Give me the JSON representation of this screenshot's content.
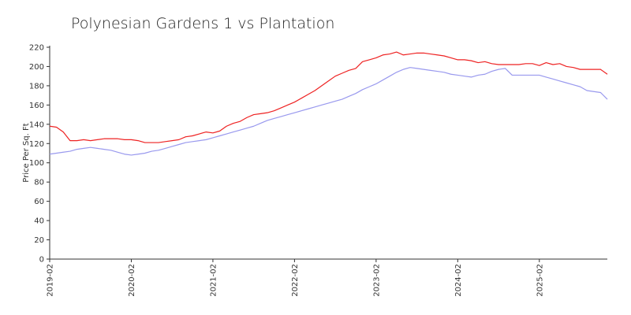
{
  "chart_data": {
    "type": "line",
    "title": "Polynesian Gardens 1 vs Plantation",
    "xlabel": "",
    "ylabel": "Price Per Sq. Ft",
    "ylim": [
      0,
      220
    ],
    "yticks": [
      0,
      20,
      40,
      60,
      80,
      100,
      120,
      140,
      160,
      180,
      200,
      220
    ],
    "xticks": [
      "2019-02",
      "2020-02",
      "2021-02",
      "2022-02",
      "2023-02",
      "2024-02",
      "2025-02"
    ],
    "x_start": "2019-02",
    "x_end": "2025-12",
    "grid": false,
    "legend": "none",
    "series": [
      {
        "color": "#ee2222",
        "points": [
          [
            "2019-02",
            138
          ],
          [
            "2019-03",
            137
          ],
          [
            "2019-04",
            132
          ],
          [
            "2019-05",
            123
          ],
          [
            "2019-06",
            123
          ],
          [
            "2019-07",
            124
          ],
          [
            "2019-08",
            123
          ],
          [
            "2019-09",
            124
          ],
          [
            "2019-10",
            125
          ],
          [
            "2019-11",
            125
          ],
          [
            "2019-12",
            125
          ],
          [
            "2020-01",
            124
          ],
          [
            "2020-02",
            124
          ],
          [
            "2020-03",
            123
          ],
          [
            "2020-04",
            121
          ],
          [
            "2020-05",
            121
          ],
          [
            "2020-06",
            121
          ],
          [
            "2020-07",
            122
          ],
          [
            "2020-08",
            123
          ],
          [
            "2020-09",
            124
          ],
          [
            "2020-10",
            127
          ],
          [
            "2020-11",
            128
          ],
          [
            "2020-12",
            130
          ],
          [
            "2021-01",
            132
          ],
          [
            "2021-02",
            131
          ],
          [
            "2021-03",
            133
          ],
          [
            "2021-04",
            138
          ],
          [
            "2021-05",
            141
          ],
          [
            "2021-06",
            143
          ],
          [
            "2021-07",
            147
          ],
          [
            "2021-08",
            150
          ],
          [
            "2021-09",
            151
          ],
          [
            "2021-10",
            152
          ],
          [
            "2021-11",
            154
          ],
          [
            "2021-12",
            157
          ],
          [
            "2022-01",
            160
          ],
          [
            "2022-02",
            163
          ],
          [
            "2022-03",
            167
          ],
          [
            "2022-04",
            171
          ],
          [
            "2022-05",
            175
          ],
          [
            "2022-06",
            180
          ],
          [
            "2022-07",
            185
          ],
          [
            "2022-08",
            190
          ],
          [
            "2022-09",
            193
          ],
          [
            "2022-10",
            196
          ],
          [
            "2022-11",
            198
          ],
          [
            "2022-12",
            205
          ],
          [
            "2023-01",
            207
          ],
          [
            "2023-02",
            209
          ],
          [
            "2023-03",
            212
          ],
          [
            "2023-04",
            213
          ],
          [
            "2023-05",
            215
          ],
          [
            "2023-06",
            212
          ],
          [
            "2023-07",
            213
          ],
          [
            "2023-08",
            214
          ],
          [
            "2023-09",
            214
          ],
          [
            "2023-10",
            213
          ],
          [
            "2023-11",
            212
          ],
          [
            "2023-12",
            211
          ],
          [
            "2024-01",
            209
          ],
          [
            "2024-02",
            207
          ],
          [
            "2024-03",
            207
          ],
          [
            "2024-04",
            206
          ],
          [
            "2024-05",
            204
          ],
          [
            "2024-06",
            205
          ],
          [
            "2024-07",
            203
          ],
          [
            "2024-08",
            202
          ],
          [
            "2024-09",
            202
          ],
          [
            "2024-10",
            202
          ],
          [
            "2024-11",
            202
          ],
          [
            "2024-12",
            203
          ],
          [
            "2025-01",
            203
          ],
          [
            "2025-02",
            201
          ],
          [
            "2025-03",
            204
          ],
          [
            "2025-04",
            202
          ],
          [
            "2025-05",
            203
          ],
          [
            "2025-06",
            200
          ],
          [
            "2025-07",
            199
          ],
          [
            "2025-08",
            197
          ],
          [
            "2025-09",
            197
          ],
          [
            "2025-10",
            197
          ],
          [
            "2025-11",
            197
          ],
          [
            "2025-12",
            192
          ]
        ]
      },
      {
        "color": "#9999ee",
        "points": [
          [
            "2019-02",
            109
          ],
          [
            "2019-03",
            110
          ],
          [
            "2019-04",
            111
          ],
          [
            "2019-05",
            112
          ],
          [
            "2019-06",
            114
          ],
          [
            "2019-07",
            115
          ],
          [
            "2019-08",
            116
          ],
          [
            "2019-09",
            115
          ],
          [
            "2019-10",
            114
          ],
          [
            "2019-11",
            113
          ],
          [
            "2019-12",
            111
          ],
          [
            "2020-01",
            109
          ],
          [
            "2020-02",
            108
          ],
          [
            "2020-03",
            109
          ],
          [
            "2020-04",
            110
          ],
          [
            "2020-05",
            112
          ],
          [
            "2020-06",
            113
          ],
          [
            "2020-07",
            115
          ],
          [
            "2020-08",
            117
          ],
          [
            "2020-09",
            119
          ],
          [
            "2020-10",
            121
          ],
          [
            "2020-11",
            122
          ],
          [
            "2020-12",
            123
          ],
          [
            "2021-01",
            124
          ],
          [
            "2021-02",
            126
          ],
          [
            "2021-03",
            128
          ],
          [
            "2021-04",
            130
          ],
          [
            "2021-05",
            132
          ],
          [
            "2021-06",
            134
          ],
          [
            "2021-07",
            136
          ],
          [
            "2021-08",
            138
          ],
          [
            "2021-09",
            141
          ],
          [
            "2021-10",
            144
          ],
          [
            "2021-11",
            146
          ],
          [
            "2021-12",
            148
          ],
          [
            "2022-01",
            150
          ],
          [
            "2022-02",
            152
          ],
          [
            "2022-03",
            154
          ],
          [
            "2022-04",
            156
          ],
          [
            "2022-05",
            158
          ],
          [
            "2022-06",
            160
          ],
          [
            "2022-07",
            162
          ],
          [
            "2022-08",
            164
          ],
          [
            "2022-09",
            166
          ],
          [
            "2022-10",
            169
          ],
          [
            "2022-11",
            172
          ],
          [
            "2022-12",
            176
          ],
          [
            "2023-01",
            179
          ],
          [
            "2023-02",
            182
          ],
          [
            "2023-03",
            186
          ],
          [
            "2023-04",
            190
          ],
          [
            "2023-05",
            194
          ],
          [
            "2023-06",
            197
          ],
          [
            "2023-07",
            199
          ],
          [
            "2023-08",
            198
          ],
          [
            "2023-09",
            197
          ],
          [
            "2023-10",
            196
          ],
          [
            "2023-11",
            195
          ],
          [
            "2023-12",
            194
          ],
          [
            "2024-01",
            192
          ],
          [
            "2024-02",
            191
          ],
          [
            "2024-03",
            190
          ],
          [
            "2024-04",
            189
          ],
          [
            "2024-05",
            191
          ],
          [
            "2024-06",
            192
          ],
          [
            "2024-07",
            195
          ],
          [
            "2024-08",
            197
          ],
          [
            "2024-09",
            198
          ],
          [
            "2024-10",
            191
          ],
          [
            "2024-11",
            191
          ],
          [
            "2024-12",
            191
          ],
          [
            "2025-01",
            191
          ],
          [
            "2025-02",
            191
          ],
          [
            "2025-03",
            189
          ],
          [
            "2025-04",
            187
          ],
          [
            "2025-05",
            185
          ],
          [
            "2025-06",
            183
          ],
          [
            "2025-07",
            181
          ],
          [
            "2025-08",
            179
          ],
          [
            "2025-09",
            175
          ],
          [
            "2025-10",
            174
          ],
          [
            "2025-11",
            173
          ],
          [
            "2025-12",
            166
          ]
        ]
      }
    ]
  }
}
